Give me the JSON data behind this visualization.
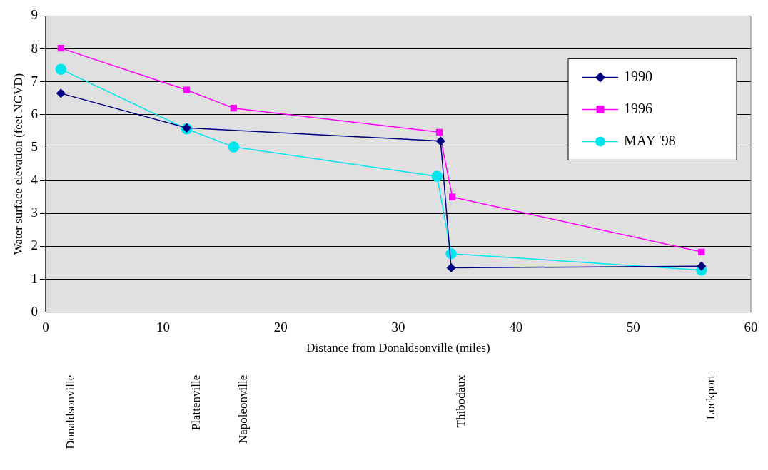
{
  "chart_data": {
    "type": "line",
    "xlabel": "Distance from Donaldsonville (miles)",
    "ylabel": "Water surface elevation (feet NGVD)",
    "xlim": [
      0,
      60
    ],
    "xticks": [
      0,
      10,
      20,
      30,
      40,
      50,
      60
    ],
    "ylim": [
      0,
      9
    ],
    "yticks": [
      0,
      1,
      2,
      3,
      4,
      5,
      6,
      7,
      8,
      9
    ],
    "grid": "y",
    "legend": "top right",
    "series": [
      {
        "name": "1990",
        "color": "#000080",
        "marker": "diamond",
        "x": [
          1.3,
          12,
          33.6,
          34.5,
          55.8
        ],
        "values": [
          6.65,
          5.6,
          5.2,
          1.35,
          1.4
        ]
      },
      {
        "name": "1996",
        "color": "#ff00ff",
        "marker": "square",
        "x": [
          1.3,
          12,
          16,
          33.5,
          34.6,
          55.8
        ],
        "values": [
          8.02,
          6.75,
          6.2,
          5.47,
          3.5,
          1.83
        ]
      },
      {
        "name": "MAY '98",
        "color": "#00e5ee",
        "marker": "circle",
        "x": [
          1.3,
          12,
          16,
          33.3,
          34.5,
          55.8
        ],
        "values": [
          7.38,
          5.57,
          5.02,
          4.13,
          1.78,
          1.28
        ]
      }
    ],
    "annotations": [
      "Donaldsonville",
      "Plattenville",
      "Napoleonville",
      "Thibodaux",
      "Lockport"
    ]
  }
}
